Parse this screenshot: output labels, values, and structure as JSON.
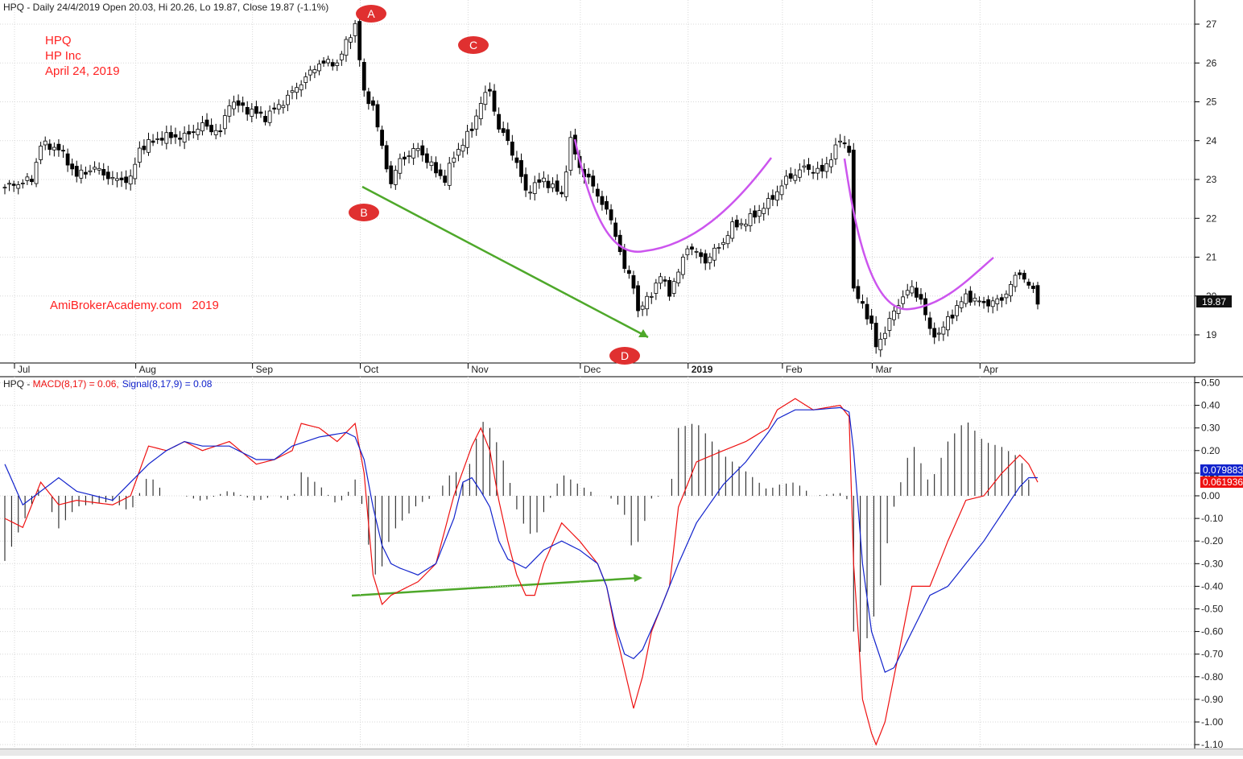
{
  "chart_data": [
    {
      "type": "candlestick",
      "header": "HPQ - Daily 24/4/2019 Open 20.03, Hi 20.26, Lo 19.87, Close 19.87 (-1.1%)",
      "title_lines": [
        "HPQ",
        "HP Inc",
        "April 24, 2019"
      ],
      "watermark": "AmiBrokerAcademy.com   2019",
      "last_price_label": "19.87",
      "accent_color": "#ff2222",
      "ylim": [
        18.3,
        27.4
      ],
      "y_ticks": [
        19,
        20,
        21,
        22,
        23,
        24,
        25,
        26,
        27
      ],
      "x_ticks": [
        {
          "label": "Jul",
          "index": 0
        },
        {
          "label": "Aug",
          "index": 27
        },
        {
          "label": "Sep",
          "index": 53
        },
        {
          "label": "Oct",
          "index": 77
        },
        {
          "label": "Nov",
          "index": 101
        },
        {
          "label": "Dec",
          "index": 126
        },
        {
          "label": "2019",
          "index": 150
        },
        {
          "label": "Feb",
          "index": 171
        },
        {
          "label": "Mar",
          "index": 191
        },
        {
          "label": "Apr",
          "index": 215
        }
      ],
      "close_points": [
        [
          0,
          22.8
        ],
        [
          6,
          23.0
        ],
        [
          8,
          23.9
        ],
        [
          12,
          23.8
        ],
        [
          16,
          23.1
        ],
        [
          20,
          23.3
        ],
        [
          24,
          23.0
        ],
        [
          28,
          23.0
        ],
        [
          30,
          23.8
        ],
        [
          35,
          24.1
        ],
        [
          40,
          24.1
        ],
        [
          44,
          24.4
        ],
        [
          48,
          24.2
        ],
        [
          50,
          25.0
        ],
        [
          54,
          24.8
        ],
        [
          58,
          24.6
        ],
        [
          62,
          25.0
        ],
        [
          66,
          25.5
        ],
        [
          70,
          26.0
        ],
        [
          74,
          26.0
        ],
        [
          78,
          27.0
        ],
        [
          80,
          25.2
        ],
        [
          82,
          24.9
        ],
        [
          84,
          23.8
        ],
        [
          86,
          22.9
        ],
        [
          88,
          23.5
        ],
        [
          92,
          23.8
        ],
        [
          96,
          23.2
        ],
        [
          98,
          23.0
        ],
        [
          100,
          23.6
        ],
        [
          104,
          24.3
        ],
        [
          106,
          25.0
        ],
        [
          108,
          25.3
        ],
        [
          110,
          24.3
        ],
        [
          112,
          24.0
        ],
        [
          114,
          23.4
        ],
        [
          116,
          22.7
        ],
        [
          120,
          23.0
        ],
        [
          124,
          22.6
        ],
        [
          126,
          24.0
        ],
        [
          128,
          23.3
        ],
        [
          130,
          23.0
        ],
        [
          132,
          22.6
        ],
        [
          134,
          22.2
        ],
        [
          136,
          21.6
        ],
        [
          138,
          20.7
        ],
        [
          140,
          20.3
        ],
        [
          141,
          19.6
        ],
        [
          143,
          19.9
        ],
        [
          146,
          20.5
        ],
        [
          148,
          20.1
        ],
        [
          150,
          20.6
        ],
        [
          152,
          21.3
        ],
        [
          154,
          21.1
        ],
        [
          156,
          20.9
        ],
        [
          160,
          21.4
        ],
        [
          162,
          21.8
        ],
        [
          165,
          21.9
        ],
        [
          170,
          22.4
        ],
        [
          174,
          23.0
        ],
        [
          178,
          23.3
        ],
        [
          182,
          23.2
        ],
        [
          186,
          24.0
        ],
        [
          188,
          23.8
        ],
        [
          189,
          20.1
        ],
        [
          191,
          19.8
        ],
        [
          193,
          19.2
        ],
        [
          194,
          18.7
        ],
        [
          196,
          19.1
        ],
        [
          198,
          19.6
        ],
        [
          200,
          20.0
        ],
        [
          202,
          20.2
        ],
        [
          204,
          19.9
        ],
        [
          206,
          19.1
        ],
        [
          208,
          19.0
        ],
        [
          210,
          19.4
        ],
        [
          212,
          19.7
        ],
        [
          214,
          20.0
        ],
        [
          218,
          19.8
        ],
        [
          222,
          19.9
        ],
        [
          224,
          20.3
        ],
        [
          226,
          20.6
        ],
        [
          228,
          20.3
        ],
        [
          230,
          19.87
        ]
      ],
      "labels": [
        {
          "text": "A",
          "index": 82,
          "value": 27.3
        },
        {
          "text": "B",
          "index": 82,
          "value": 21.6
        },
        {
          "text": "C",
          "index": 107,
          "value": 26.7
        },
        {
          "text": "D",
          "index": 140,
          "value": 18.7
        }
      ],
      "annotation_color_trend": "#4ea82a",
      "annotation_color_pattern": "#cc55ee"
    },
    {
      "type": "line",
      "header_prefix": "HPQ - ",
      "macd_label": "MACD(8,17) = 0.06,",
      "signal_label": "Signal(8,17,9) = 0.08",
      "ylim": [
        -1.12,
        0.52
      ],
      "y_ticks": [
        "0.50",
        "0.40",
        "0.30",
        "0.20",
        "0.10",
        "0.00",
        "-0.10",
        "-0.20",
        "-0.30",
        "-0.40",
        "-0.50",
        "-0.60",
        "-0.70",
        "-0.80",
        "-0.90",
        "-1.00",
        "-1.10"
      ],
      "signal_value_label": "0.079883",
      "macd_value_label": "0.061936",
      "series": [
        {
          "color": "#ee1111",
          "points": [
            [
              0,
              -0.1
            ],
            [
              4,
              -0.14
            ],
            [
              8,
              0.06
            ],
            [
              12,
              -0.04
            ],
            [
              16,
              -0.02
            ],
            [
              20,
              -0.03
            ],
            [
              24,
              -0.04
            ],
            [
              28,
              0.0
            ],
            [
              32,
              0.22
            ],
            [
              36,
              0.2
            ],
            [
              40,
              0.24
            ],
            [
              44,
              0.2
            ],
            [
              50,
              0.24
            ],
            [
              56,
              0.14
            ],
            [
              60,
              0.16
            ],
            [
              64,
              0.2
            ],
            [
              66,
              0.32
            ],
            [
              70,
              0.3
            ],
            [
              74,
              0.24
            ],
            [
              78,
              0.32
            ],
            [
              80,
              0.1
            ],
            [
              82,
              -0.35
            ],
            [
              84,
              -0.48
            ],
            [
              86,
              -0.44
            ],
            [
              88,
              -0.42
            ],
            [
              92,
              -0.38
            ],
            [
              96,
              -0.3
            ],
            [
              100,
              0.0
            ],
            [
              104,
              0.22
            ],
            [
              106,
              0.3
            ],
            [
              108,
              0.2
            ],
            [
              110,
              -0.02
            ],
            [
              112,
              -0.2
            ],
            [
              114,
              -0.35
            ],
            [
              116,
              -0.44
            ],
            [
              118,
              -0.44
            ],
            [
              120,
              -0.3
            ],
            [
              124,
              -0.12
            ],
            [
              128,
              -0.2
            ],
            [
              132,
              -0.3
            ],
            [
              134,
              -0.4
            ],
            [
              136,
              -0.6
            ],
            [
              140,
              -0.94
            ],
            [
              142,
              -0.8
            ],
            [
              144,
              -0.6
            ],
            [
              148,
              -0.4
            ],
            [
              150,
              -0.05
            ],
            [
              154,
              0.15
            ],
            [
              160,
              0.2
            ],
            [
              165,
              0.24
            ],
            [
              170,
              0.3
            ],
            [
              172,
              0.38
            ],
            [
              176,
              0.43
            ],
            [
              180,
              0.38
            ],
            [
              186,
              0.4
            ],
            [
              188,
              0.35
            ],
            [
              189,
              -0.3
            ],
            [
              191,
              -0.9
            ],
            [
              193,
              -1.05
            ],
            [
              194,
              -1.1
            ],
            [
              196,
              -1.0
            ],
            [
              198,
              -0.8
            ],
            [
              202,
              -0.4
            ],
            [
              206,
              -0.4
            ],
            [
              210,
              -0.2
            ],
            [
              214,
              -0.02
            ],
            [
              218,
              0.0
            ],
            [
              222,
              0.1
            ],
            [
              226,
              0.18
            ],
            [
              228,
              0.14
            ],
            [
              230,
              0.06
            ]
          ]
        },
        {
          "color": "#1122cc",
          "points": [
            [
              0,
              0.14
            ],
            [
              4,
              -0.04
            ],
            [
              8,
              0.02
            ],
            [
              12,
              0.08
            ],
            [
              16,
              0.02
            ],
            [
              20,
              0.0
            ],
            [
              24,
              -0.02
            ],
            [
              28,
              0.06
            ],
            [
              32,
              0.14
            ],
            [
              36,
              0.2
            ],
            [
              40,
              0.24
            ],
            [
              44,
              0.22
            ],
            [
              50,
              0.22
            ],
            [
              56,
              0.16
            ],
            [
              60,
              0.16
            ],
            [
              64,
              0.22
            ],
            [
              70,
              0.26
            ],
            [
              76,
              0.28
            ],
            [
              78,
              0.26
            ],
            [
              80,
              0.16
            ],
            [
              82,
              -0.05
            ],
            [
              84,
              -0.22
            ],
            [
              86,
              -0.3
            ],
            [
              88,
              -0.32
            ],
            [
              92,
              -0.35
            ],
            [
              96,
              -0.3
            ],
            [
              100,
              -0.1
            ],
            [
              102,
              0.06
            ],
            [
              104,
              0.08
            ],
            [
              106,
              0.02
            ],
            [
              108,
              -0.05
            ],
            [
              110,
              -0.2
            ],
            [
              112,
              -0.28
            ],
            [
              114,
              -0.3
            ],
            [
              116,
              -0.32
            ],
            [
              120,
              -0.24
            ],
            [
              124,
              -0.2
            ],
            [
              128,
              -0.24
            ],
            [
              132,
              -0.3
            ],
            [
              134,
              -0.4
            ],
            [
              136,
              -0.58
            ],
            [
              138,
              -0.7
            ],
            [
              140,
              -0.72
            ],
            [
              142,
              -0.68
            ],
            [
              146,
              -0.5
            ],
            [
              150,
              -0.3
            ],
            [
              154,
              -0.12
            ],
            [
              160,
              0.05
            ],
            [
              165,
              0.15
            ],
            [
              170,
              0.28
            ],
            [
              172,
              0.34
            ],
            [
              176,
              0.38
            ],
            [
              180,
              0.38
            ],
            [
              186,
              0.39
            ],
            [
              188,
              0.37
            ],
            [
              189,
              0.2
            ],
            [
              191,
              -0.3
            ],
            [
              193,
              -0.6
            ],
            [
              196,
              -0.78
            ],
            [
              198,
              -0.76
            ],
            [
              202,
              -0.6
            ],
            [
              206,
              -0.44
            ],
            [
              210,
              -0.4
            ],
            [
              214,
              -0.3
            ],
            [
              218,
              -0.2
            ],
            [
              222,
              -0.08
            ],
            [
              226,
              0.04
            ],
            [
              228,
              0.08
            ],
            [
              230,
              0.08
            ]
          ]
        }
      ],
      "histogram_color": "#111111"
    }
  ]
}
